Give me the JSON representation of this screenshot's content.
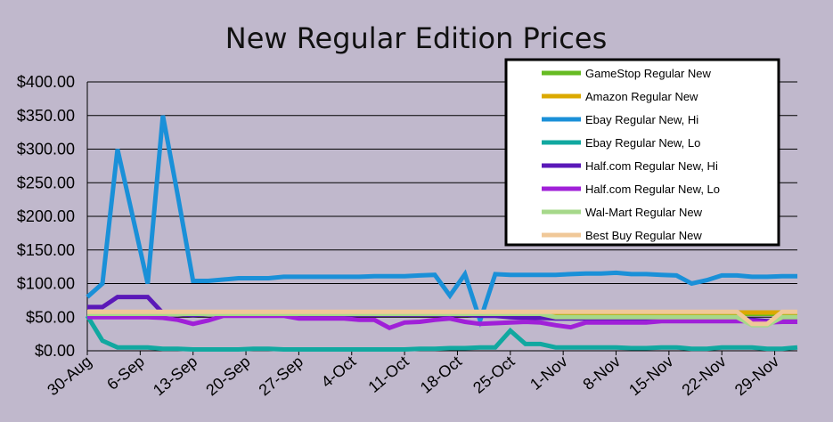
{
  "chart_data": {
    "type": "line",
    "title": "New Regular Edition Prices",
    "xlabel": "",
    "ylabel": "",
    "ylim": [
      0,
      400
    ],
    "yticks": [
      "$0.00",
      "$50.00",
      "$100.00",
      "$150.00",
      "$200.00",
      "$250.00",
      "$300.00",
      "$350.00",
      "$400.00"
    ],
    "xticks": [
      "30-Aug",
      "6-Sep",
      "13-Sep",
      "20-Sep",
      "27-Sep",
      "4-Oct",
      "11-Oct",
      "18-Oct",
      "25-Oct",
      "1-Nov",
      "8-Nov",
      "15-Nov",
      "22-Nov",
      "29-Nov"
    ],
    "x": [
      "30-Aug",
      "1-Sep",
      "3-Sep",
      "5-Sep",
      "7-Sep",
      "9-Sep",
      "11-Sep",
      "13-Sep",
      "15-Sep",
      "17-Sep",
      "19-Sep",
      "21-Sep",
      "23-Sep",
      "25-Sep",
      "27-Sep",
      "29-Sep",
      "1-Oct",
      "3-Oct",
      "5-Oct",
      "7-Oct",
      "9-Oct",
      "11-Oct",
      "13-Oct",
      "15-Oct",
      "17-Oct",
      "19-Oct",
      "21-Oct",
      "23-Oct",
      "25-Oct",
      "27-Oct",
      "29-Oct",
      "31-Oct",
      "2-Nov",
      "4-Nov",
      "6-Nov",
      "8-Nov",
      "10-Nov",
      "12-Nov",
      "14-Nov",
      "16-Nov",
      "18-Nov",
      "20-Nov",
      "22-Nov",
      "24-Nov",
      "26-Nov",
      "28-Nov",
      "30-Nov",
      "2-Dec"
    ],
    "grid": true,
    "legend_position": "top-right",
    "series": [
      {
        "name": "GameStop Regular New",
        "color": "#66bb22",
        "values": [
          55,
          55,
          55,
          55,
          55,
          55,
          55,
          55,
          55,
          55,
          55,
          55,
          55,
          55,
          55,
          55,
          55,
          55,
          55,
          55,
          55,
          55,
          55,
          55,
          55,
          55,
          55,
          55,
          55,
          55,
          55,
          55,
          55,
          55,
          55,
          55,
          55,
          55,
          55,
          55,
          55,
          55,
          55,
          55,
          55,
          55,
          55,
          55
        ]
      },
      {
        "name": "Amazon Regular New",
        "color": "#dba900",
        "values": [
          57,
          57,
          57,
          57,
          57,
          57,
          57,
          57,
          57,
          57,
          57,
          57,
          57,
          57,
          57,
          57,
          57,
          57,
          57,
          57,
          57,
          57,
          57,
          57,
          57,
          57,
          57,
          57,
          57,
          57,
          57,
          57,
          57,
          57,
          57,
          57,
          57,
          57,
          57,
          57,
          57,
          57,
          57,
          57,
          57,
          57,
          57,
          57
        ]
      },
      {
        "name": "Ebay Regular New, Hi",
        "color": "#1a90d8",
        "values": [
          80,
          100,
          300,
          200,
          100,
          350,
          230,
          104,
          104,
          106,
          108,
          108,
          108,
          110,
          110,
          110,
          110,
          110,
          110,
          111,
          111,
          111,
          112,
          113,
          82,
          114,
          45,
          114,
          113,
          113,
          113,
          113,
          114,
          115,
          115,
          116,
          114,
          114,
          113,
          112,
          100,
          105,
          112,
          112,
          110,
          110,
          111,
          111
        ]
      },
      {
        "name": "Ebay Regular New, Lo",
        "color": "#11a8a0",
        "values": [
          52,
          15,
          5,
          5,
          5,
          3,
          3,
          2,
          2,
          2,
          2,
          3,
          3,
          2,
          2,
          2,
          2,
          2,
          2,
          2,
          2,
          2,
          3,
          3,
          4,
          4,
          5,
          5,
          30,
          10,
          10,
          5,
          5,
          5,
          5,
          5,
          4,
          4,
          5,
          5,
          3,
          3,
          5,
          5,
          5,
          3,
          3,
          5
        ]
      },
      {
        "name": "Half.com Regular New, Hi",
        "color": "#5a18b8",
        "values": [
          65,
          65,
          80,
          80,
          80,
          56,
          55,
          53,
          55,
          55,
          55,
          55,
          54,
          54,
          54,
          54,
          54,
          54,
          54,
          54,
          54,
          54,
          54,
          54,
          54,
          54,
          52,
          52,
          50,
          49,
          49,
          48,
          48,
          48,
          48,
          48,
          47,
          47,
          47,
          46,
          46,
          46,
          46,
          46,
          46,
          44,
          45,
          45
        ]
      },
      {
        "name": "Half.com Regular New, Lo",
        "color": "#a020d8",
        "values": [
          50,
          50,
          50,
          50,
          50,
          49,
          46,
          40,
          45,
          52,
          52,
          52,
          52,
          52,
          48,
          48,
          48,
          48,
          46,
          46,
          34,
          42,
          43,
          46,
          48,
          43,
          40,
          41,
          42,
          43,
          42,
          38,
          35,
          42,
          42,
          42,
          42,
          42,
          44,
          44,
          44,
          44,
          44,
          44,
          44,
          42,
          43,
          43
        ]
      },
      {
        "name": "Wal-Mart Regular New",
        "color": "#a6d88a",
        "values": [
          55,
          55,
          55,
          55,
          55,
          55,
          55,
          55,
          55,
          55,
          55,
          55,
          55,
          55,
          55,
          55,
          55,
          55,
          55,
          55,
          55,
          55,
          55,
          55,
          55,
          55,
          55,
          55,
          55,
          55,
          55,
          50,
          50,
          50,
          50,
          50,
          50,
          50,
          50,
          50,
          50,
          50,
          50,
          50,
          38,
          38,
          50,
          50
        ]
      },
      {
        "name": "Best Buy Regular New",
        "color": "#f0c898",
        "values": [
          58,
          58,
          58,
          58,
          58,
          58,
          58,
          58,
          58,
          58,
          58,
          58,
          58,
          58,
          58,
          58,
          58,
          58,
          58,
          58,
          58,
          58,
          58,
          58,
          58,
          58,
          58,
          58,
          58,
          58,
          58,
          58,
          58,
          58,
          58,
          58,
          58,
          58,
          58,
          58,
          58,
          58,
          58,
          58,
          40,
          40,
          58,
          58
        ]
      }
    ]
  }
}
